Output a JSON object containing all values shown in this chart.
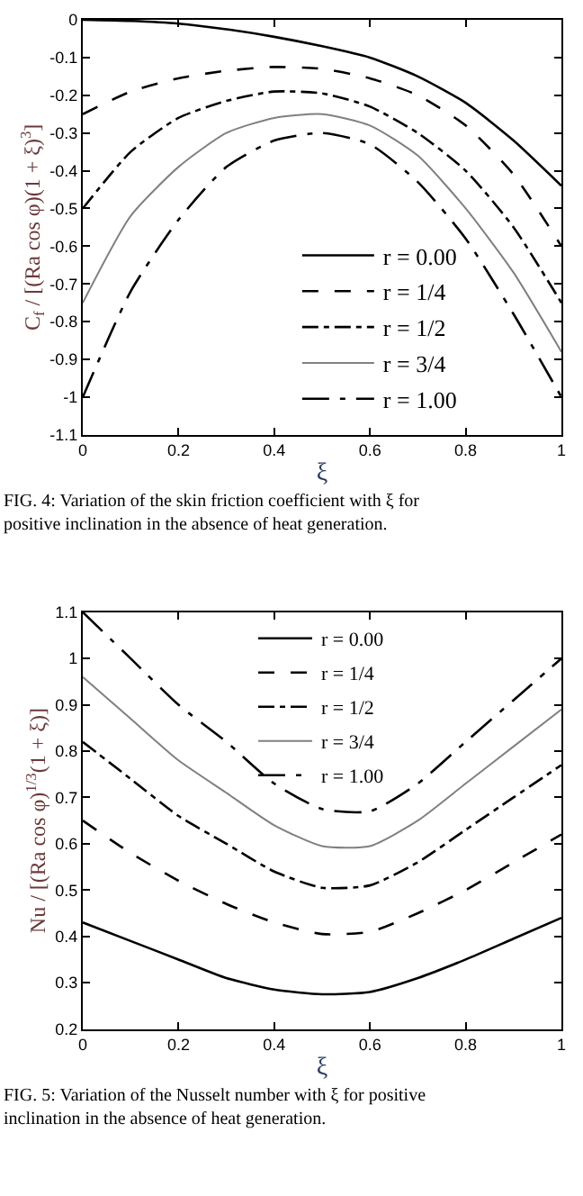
{
  "chart_data": [
    {
      "type": "line",
      "xlabel": "ξ",
      "ylabel": "C$_{f}$ / [(Ra cos φ)(1 + ξ)$^{3}$]",
      "x": [
        0,
        0.1,
        0.2,
        0.3,
        0.4,
        0.5,
        0.6,
        0.7,
        0.8,
        0.9,
        1
      ],
      "series": [
        {
          "name": "r = 0.00",
          "color": "#000000",
          "line_style": "solid",
          "values": [
            0,
            -0.003,
            -0.01,
            -0.025,
            -0.045,
            -0.07,
            -0.1,
            -0.15,
            -0.22,
            -0.32,
            -0.44
          ]
        },
        {
          "name": "r = 1/4",
          "color": "#000000",
          "line_style": "dashed",
          "values": [
            -0.25,
            -0.19,
            -0.155,
            -0.135,
            -0.125,
            -0.13,
            -0.155,
            -0.2,
            -0.28,
            -0.41,
            -0.6
          ]
        },
        {
          "name": "r = 1/2",
          "color": "#000000",
          "line_style": "dashdot",
          "values": [
            -0.5,
            -0.35,
            -0.26,
            -0.215,
            -0.19,
            -0.195,
            -0.23,
            -0.3,
            -0.4,
            -0.55,
            -0.75
          ]
        },
        {
          "name": "r = 3/4",
          "color": "#808080",
          "line_style": "solid",
          "values": [
            -0.75,
            -0.52,
            -0.39,
            -0.3,
            -0.26,
            -0.25,
            -0.28,
            -0.36,
            -0.5,
            -0.67,
            -0.88
          ]
        },
        {
          "name": "r = 1.00",
          "color": "#000000",
          "line_style": "dashdotdot",
          "values": [
            -1.0,
            -0.72,
            -0.53,
            -0.39,
            -0.32,
            -0.3,
            -0.33,
            -0.43,
            -0.58,
            -0.78,
            -1.0
          ]
        }
      ],
      "xlim": [
        0,
        1
      ],
      "xticks": [
        0,
        0.2,
        0.4,
        0.6,
        0.8,
        1
      ],
      "ylim": [
        -1.1,
        0
      ],
      "yticks": [
        -1.1,
        -1,
        -0.9,
        -0.8,
        -0.7,
        -0.6,
        -0.5,
        -0.4,
        -0.3,
        -0.2,
        -0.1,
        0
      ],
      "legend": "bottom",
      "annotations": [
        "FIG. 4: Variation of the skin friction coefficient with ξ for positive inclination in the absence of heat generation."
      ]
    },
    {
      "type": "line",
      "xlabel": "ξ",
      "ylabel": "Nu / [(Ra cos φ)$^{1/3}$(1 + ξ)]",
      "x": [
        0,
        0.1,
        0.2,
        0.3,
        0.4,
        0.5,
        0.6,
        0.7,
        0.8,
        0.9,
        1
      ],
      "series": [
        {
          "name": "r = 0.00",
          "color": "#000000",
          "line_style": "solid",
          "values": [
            0.43,
            0.39,
            0.35,
            0.31,
            0.285,
            0.275,
            0.28,
            0.31,
            0.35,
            0.395,
            0.44
          ]
        },
        {
          "name": "r = 1/4",
          "color": "#000000",
          "line_style": "dashed",
          "values": [
            0.65,
            0.58,
            0.52,
            0.47,
            0.43,
            0.405,
            0.41,
            0.45,
            0.5,
            0.56,
            0.62
          ]
        },
        {
          "name": "r = 1/2",
          "color": "#000000",
          "line_style": "dashdot",
          "values": [
            0.82,
            0.74,
            0.66,
            0.6,
            0.54,
            0.505,
            0.51,
            0.56,
            0.63,
            0.7,
            0.77
          ]
        },
        {
          "name": "r = 3/4",
          "color": "#808080",
          "line_style": "solid",
          "values": [
            0.96,
            0.87,
            0.78,
            0.71,
            0.64,
            0.595,
            0.595,
            0.65,
            0.73,
            0.81,
            0.89
          ]
        },
        {
          "name": "r = 1.00",
          "color": "#000000",
          "line_style": "dashdotdot",
          "values": [
            1.1,
            1.0,
            0.9,
            0.82,
            0.73,
            0.675,
            0.67,
            0.73,
            0.82,
            0.91,
            1.0
          ]
        }
      ],
      "xlim": [
        0,
        1
      ],
      "xticks": [
        0,
        0.2,
        0.4,
        0.6,
        0.8,
        1
      ],
      "ylim": [
        0.2,
        1.1
      ],
      "yticks": [
        0.2,
        0.3,
        0.4,
        0.5,
        0.6,
        0.7,
        0.8,
        0.9,
        1,
        1.1
      ],
      "legend": "top",
      "annotations": [
        "FIG. 5: Variation of the Nusselt number with ξ for positive inclination in the absence of heat generation."
      ]
    }
  ]
}
